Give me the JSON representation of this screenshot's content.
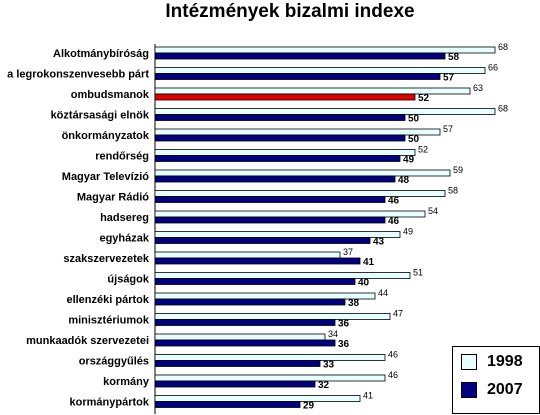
{
  "chart_data": {
    "type": "bar",
    "orientation": "horizontal",
    "title": "Intézmények bizalmi indexe",
    "categories": [
      "Alkotmánybíróság",
      "a legrokonszenvesebb párt",
      "ombudsmanok",
      "köztársasági elnök",
      "önkormányzatok",
      "rendőrség",
      "Magyar Televízió",
      "Magyar Rádió",
      "hadsereg",
      "egyházak",
      "szakszervezetek",
      "újságok",
      "ellenzéki pártok",
      "minisztériumok",
      "munkaadók szervezetei",
      "országgyűlés",
      "kormány",
      "kormánypártok"
    ],
    "series": [
      {
        "name": "1998",
        "color": "#e8ffff",
        "values": [
          68,
          66,
          63,
          68,
          57,
          52,
          59,
          58,
          54,
          49,
          37,
          51,
          44,
          47,
          34,
          46,
          46,
          41
        ]
      },
      {
        "name": "2007",
        "color": "#000080",
        "highlight_color": "#e00000",
        "highlight_index": 2,
        "values": [
          58,
          57,
          52,
          50,
          50,
          49,
          48,
          46,
          46,
          43,
          41,
          40,
          38,
          36,
          36,
          33,
          32,
          29
        ]
      }
    ],
    "legend_position": "bottom-right",
    "grid": false
  }
}
